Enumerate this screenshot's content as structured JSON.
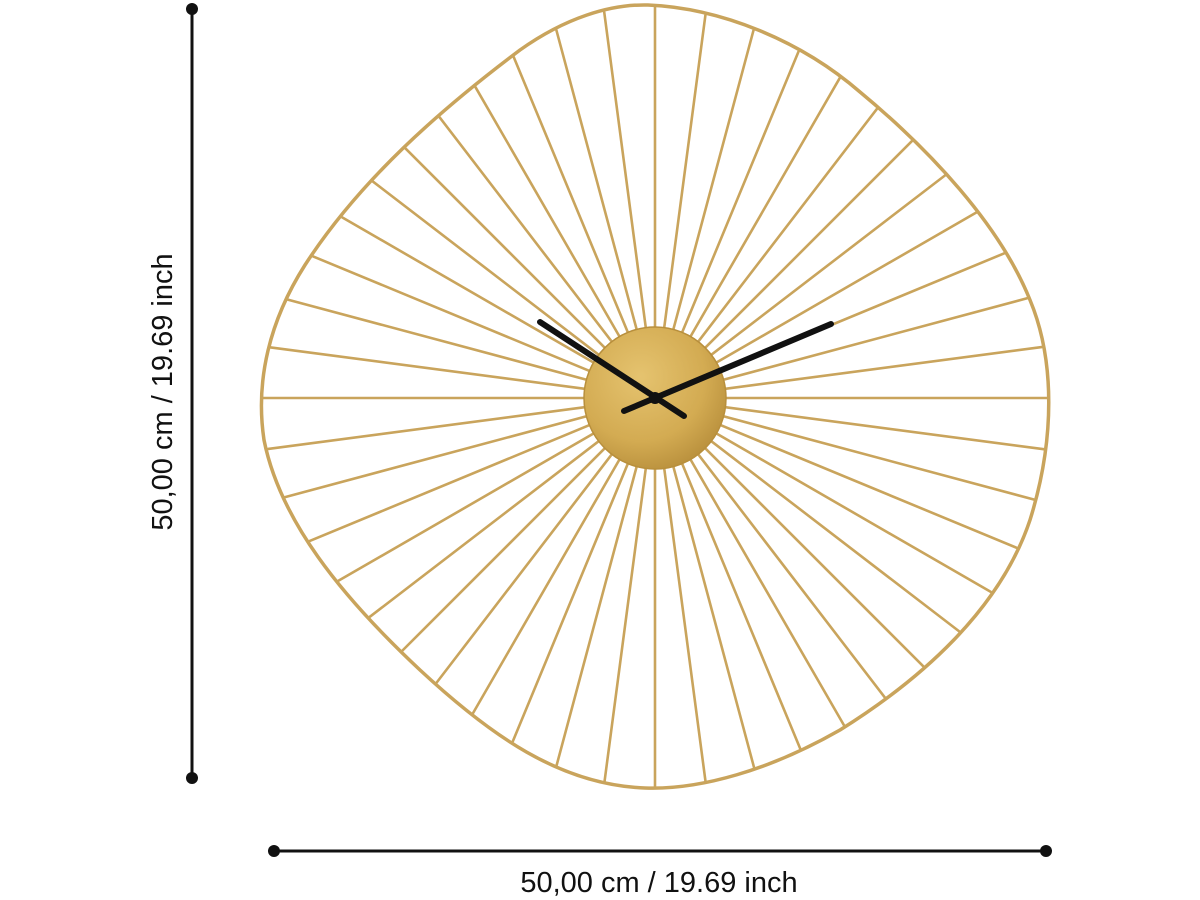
{
  "dimensions": {
    "height_label": "50,00 cm / 19.69 inch",
    "width_label": "50,00 cm / 19.69 inch"
  },
  "clock": {
    "spoke_count": 48,
    "time_shown": "10:10",
    "colors": {
      "frame": "#c9a45c",
      "hub": "#d3ab52",
      "hands": "#111111",
      "dimension_lines": "#111111"
    }
  }
}
